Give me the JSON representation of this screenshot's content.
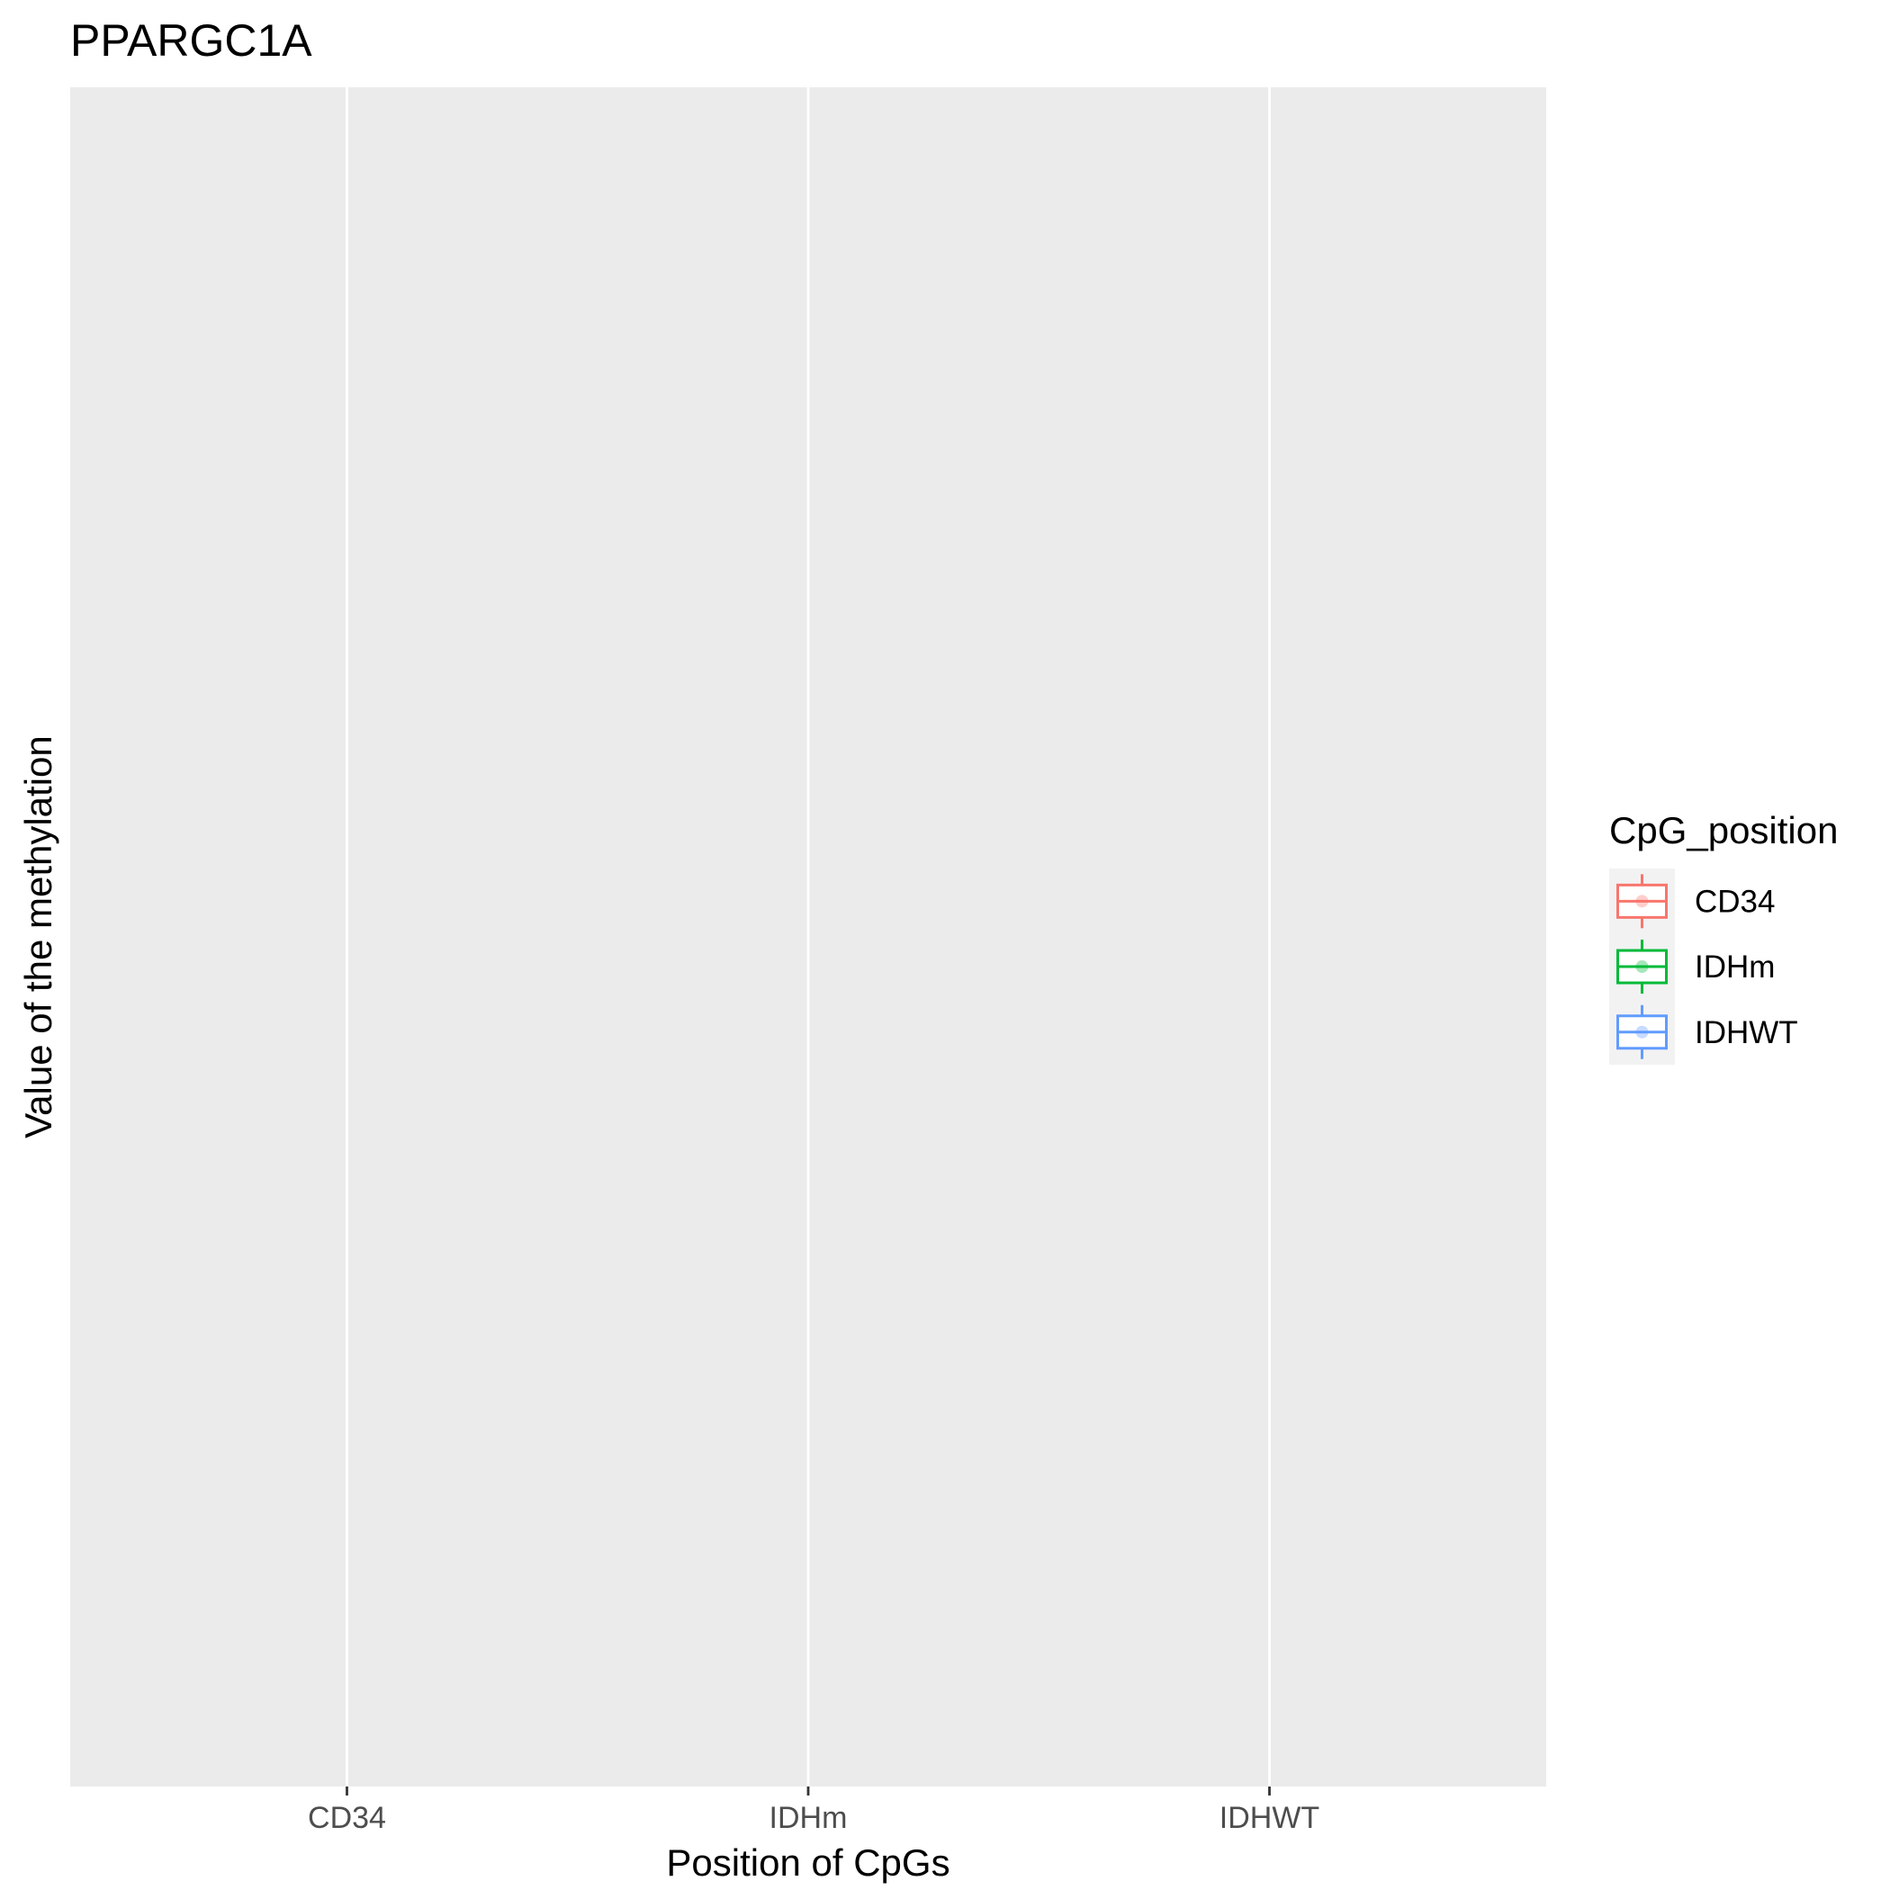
{
  "chart_data": {
    "type": "box",
    "title": "PPARGC1A",
    "xlabel": "Position of CpGs",
    "ylabel": "Value of the methylation",
    "categories": [
      "CD34",
      "IDHm",
      "IDHWT"
    ],
    "series": [],
    "grid": true,
    "legend": {
      "title": "CpG_position",
      "position": "right",
      "entries": [
        {
          "label": "CD34",
          "color": "#F8766D"
        },
        {
          "label": "IDHm",
          "color": "#00BA38"
        },
        {
          "label": "IDHWT",
          "color": "#619CFF"
        }
      ]
    },
    "colors": {
      "panel_background": "#EBEBEB",
      "grid_line": "#FFFFFF",
      "legend_key_background": "#F2F2F2",
      "tick_mark": "#333333"
    }
  }
}
